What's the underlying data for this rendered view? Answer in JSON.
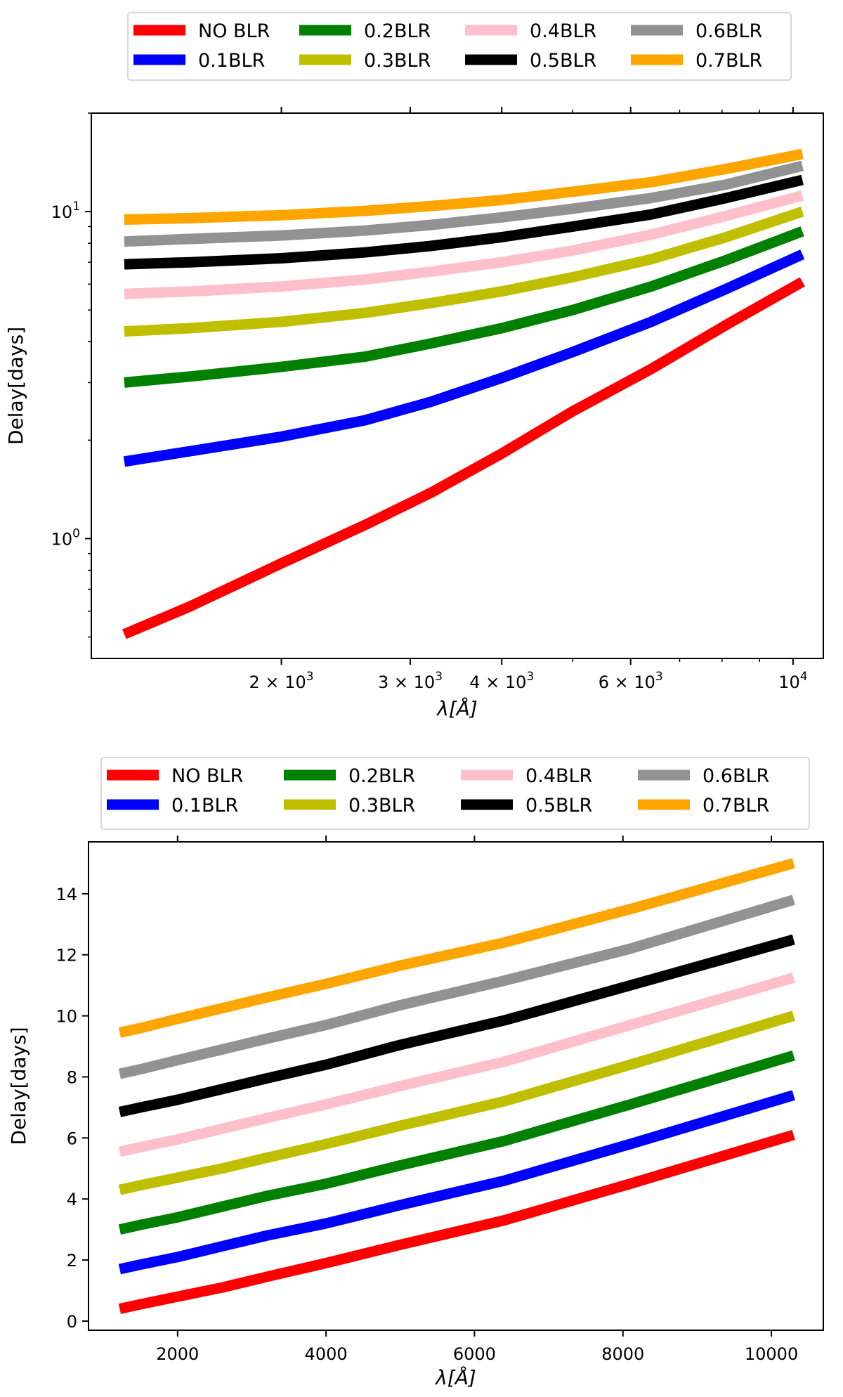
{
  "chart_data": [
    {
      "type": "line",
      "panel": "top",
      "xscale": "log",
      "yscale": "log",
      "xlabel": "λ[Å]",
      "ylabel": "Delay[days]",
      "xlim": [
        1100,
        11000
      ],
      "ylim": [
        0.43,
        20
      ],
      "xticks": [
        {
          "value": 2000,
          "base": "2 × 10",
          "exp": "3"
        },
        {
          "value": 3000,
          "base": "3 × 10",
          "exp": "3"
        },
        {
          "value": 4000,
          "base": "4 × 10",
          "exp": "3"
        },
        {
          "value": 6000,
          "base": "6 × 10",
          "exp": "3"
        },
        {
          "value": 10000,
          "base": "10",
          "exp": "4"
        }
      ],
      "yticks": [
        {
          "value": 1,
          "base": "10",
          "exp": "0"
        },
        {
          "value": 10,
          "base": "10",
          "exp": "1"
        }
      ],
      "x": [
        1220,
        1500,
        2000,
        2600,
        3200,
        4000,
        5000,
        6400,
        8100,
        10300
      ],
      "series": [
        {
          "name": "NO BLR",
          "color": "#ff0000",
          "values": [
            0.51,
            0.62,
            0.84,
            1.1,
            1.38,
            1.82,
            2.45,
            3.3,
            4.5,
            6.1
          ]
        },
        {
          "name": "0.1BLR",
          "color": "#0000ff",
          "values": [
            1.72,
            1.85,
            2.05,
            2.3,
            2.62,
            3.1,
            3.72,
            4.6,
            5.8,
            7.4
          ]
        },
        {
          "name": "0.2BLR",
          "color": "#008000",
          "values": [
            3.0,
            3.13,
            3.35,
            3.6,
            3.95,
            4.4,
            5.0,
            5.9,
            7.1,
            8.7
          ]
        },
        {
          "name": "0.3BLR",
          "color": "#bfbf00",
          "values": [
            4.3,
            4.4,
            4.6,
            4.9,
            5.25,
            5.7,
            6.3,
            7.15,
            8.35,
            10.0
          ]
        },
        {
          "name": "0.4BLR",
          "color": "#ffc0cb",
          "values": [
            5.6,
            5.7,
            5.9,
            6.2,
            6.55,
            7.0,
            7.6,
            8.5,
            9.7,
            11.2
          ]
        },
        {
          "name": "0.5BLR",
          "color": "#000000",
          "values": [
            6.9,
            7.0,
            7.2,
            7.5,
            7.85,
            8.35,
            9.0,
            9.8,
            11.0,
            12.5
          ]
        },
        {
          "name": "0.6BLR",
          "color": "#929292",
          "values": [
            8.1,
            8.25,
            8.45,
            8.75,
            9.1,
            9.6,
            10.2,
            11.0,
            12.1,
            13.8
          ]
        },
        {
          "name": "0.7BLR",
          "color": "#ffa500",
          "values": [
            9.45,
            9.55,
            9.75,
            10.05,
            10.4,
            10.85,
            11.5,
            12.3,
            13.5,
            15.0
          ]
        }
      ]
    },
    {
      "type": "line",
      "panel": "bottom",
      "xscale": "linear",
      "yscale": "linear",
      "xlabel": "λ[Å]",
      "ylabel": "Delay[days]",
      "xlim": [
        800,
        10700
      ],
      "ylim": [
        -0.3,
        15.7
      ],
      "xticks": [
        2000,
        4000,
        6000,
        8000,
        10000
      ],
      "yticks": [
        0,
        2,
        4,
        6,
        8,
        10,
        12,
        14
      ],
      "x": [
        1220,
        1500,
        2000,
        2600,
        3200,
        4000,
        5000,
        6400,
        8100,
        10300
      ],
      "series": [
        {
          "name": "NO BLR",
          "color": "#ff0000",
          "values": [
            0.4,
            0.55,
            0.8,
            1.1,
            1.45,
            1.9,
            2.5,
            3.3,
            4.5,
            6.1
          ]
        },
        {
          "name": "0.1BLR",
          "color": "#0000ff",
          "values": [
            1.7,
            1.85,
            2.1,
            2.45,
            2.8,
            3.2,
            3.8,
            4.6,
            5.8,
            7.4
          ]
        },
        {
          "name": "0.2BLR",
          "color": "#008000",
          "values": [
            3.0,
            3.15,
            3.4,
            3.75,
            4.1,
            4.5,
            5.1,
            5.9,
            7.1,
            8.7
          ]
        },
        {
          "name": "0.3BLR",
          "color": "#bfbf00",
          "values": [
            4.3,
            4.45,
            4.7,
            5.0,
            5.35,
            5.8,
            6.4,
            7.2,
            8.4,
            10.0
          ]
        },
        {
          "name": "0.4BLR",
          "color": "#ffc0cb",
          "values": [
            5.55,
            5.7,
            5.95,
            6.3,
            6.65,
            7.1,
            7.7,
            8.5,
            9.7,
            11.25
          ]
        },
        {
          "name": "0.5BLR",
          "color": "#000000",
          "values": [
            6.85,
            7.0,
            7.25,
            7.6,
            7.95,
            8.4,
            9.05,
            9.85,
            11.0,
            12.5
          ]
        },
        {
          "name": "0.6BLR",
          "color": "#929292",
          "values": [
            8.1,
            8.25,
            8.55,
            8.9,
            9.25,
            9.7,
            10.35,
            11.15,
            12.2,
            13.8
          ]
        },
        {
          "name": "0.7BLR",
          "color": "#ffa500",
          "values": [
            9.45,
            9.6,
            9.9,
            10.25,
            10.6,
            11.05,
            11.65,
            12.4,
            13.5,
            15.0
          ]
        }
      ]
    }
  ]
}
